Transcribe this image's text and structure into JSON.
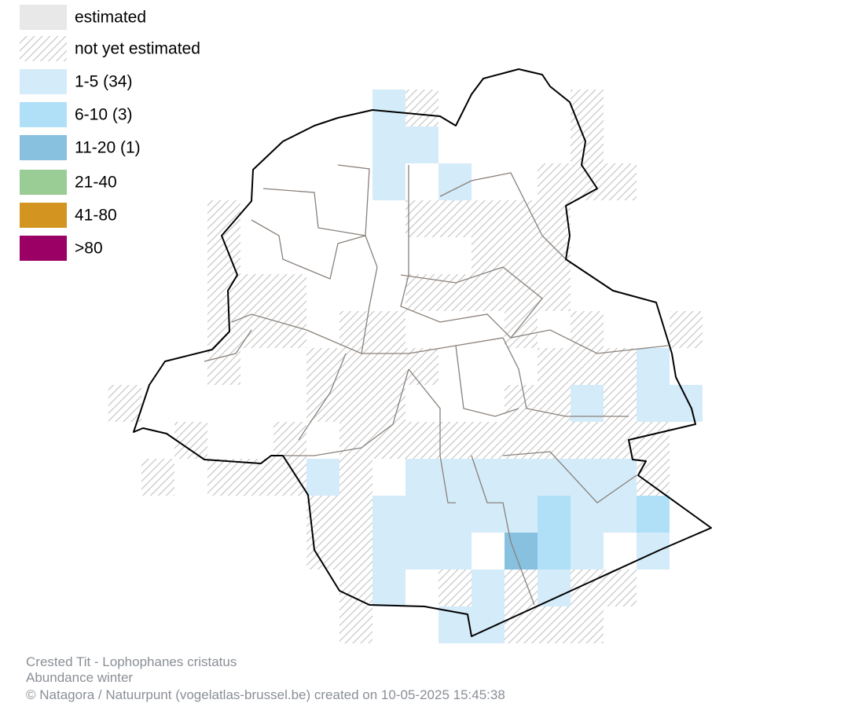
{
  "legend": [
    {
      "label": "estimated"
    },
    {
      "label": "not yet estimated"
    },
    {
      "label": "1-5 (34)"
    },
    {
      "label": "6-10 (3)"
    },
    {
      "label": "11-20 (1)"
    },
    {
      "label": "21-40"
    },
    {
      "label": "41-80"
    },
    {
      "label": ">80"
    }
  ],
  "footer": {
    "title": "Crested Tit - Lophophanes cristatus",
    "subtitle": "Abundance winter",
    "credit": "© Natagora / Natuurpunt (vogelatlas-brussel.be) created on 10-05-2025 15:45:38"
  }
}
